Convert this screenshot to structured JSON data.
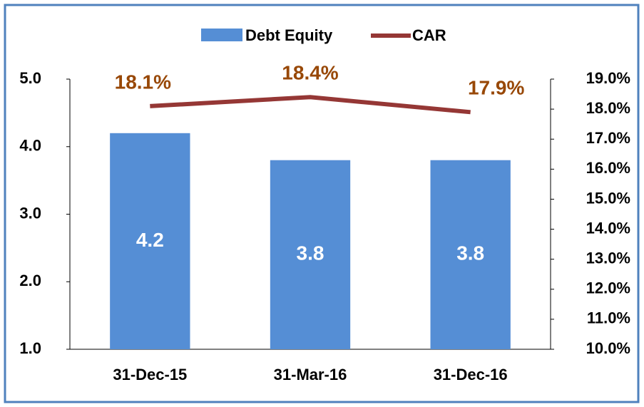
{
  "chart_data": {
    "type": "bar",
    "categories": [
      "31-Dec-15",
      "31-Mar-16",
      "31-Dec-16"
    ],
    "series": [
      {
        "name": "Debt Equity",
        "type": "bar",
        "color": "#558ed5",
        "values": [
          4.2,
          3.8,
          3.8
        ]
      },
      {
        "name": "CAR",
        "type": "line",
        "axis": "y2",
        "color": "#953735",
        "values": [
          18.1,
          18.4,
          17.9
        ],
        "value_labels": [
          "18.1%",
          "18.4%",
          "17.9%"
        ],
        "label_color": "#984807"
      }
    ],
    "ylim": [
      1,
      5
    ],
    "yticks": [
      {
        "value": 1,
        "label": "1.0"
      },
      {
        "value": 2,
        "label": "2.0"
      },
      {
        "value": 3,
        "label": "3.0"
      },
      {
        "value": 4,
        "label": "4.0"
      },
      {
        "value": 5,
        "label": "5.0"
      }
    ],
    "y2lim": [
      10,
      19
    ],
    "y2ticks": [
      {
        "value": 10,
        "label": "10.0%"
      },
      {
        "value": 11,
        "label": "11.0%"
      },
      {
        "value": 12,
        "label": "12.0%"
      },
      {
        "value": 13,
        "label": "13.0%"
      },
      {
        "value": 14,
        "label": "14.0%"
      },
      {
        "value": 15,
        "label": "15.0%"
      },
      {
        "value": 16,
        "label": "16.0%"
      },
      {
        "value": 17,
        "label": "17.0%"
      },
      {
        "value": 18,
        "label": "18.0%"
      },
      {
        "value": 19,
        "label": "19.0%"
      }
    ],
    "legend": "top",
    "grid": false
  }
}
